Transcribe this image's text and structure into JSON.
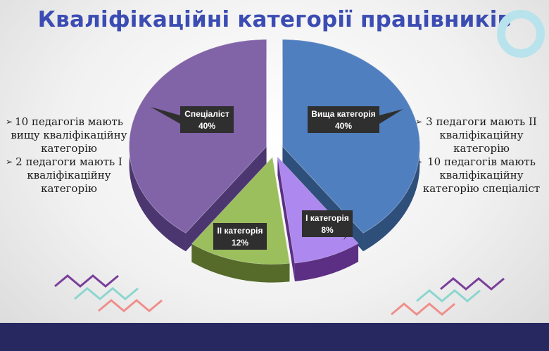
{
  "slide": {
    "title": "Кваліфікаційні категорії працівників"
  },
  "left_notes": [
    "10  педагогів мають вищу кваліфікаційну категорію",
    "2  педагоги мають І кваліфікаційну категорію"
  ],
  "right_notes": [
    "3 педагоги мають ІІ кваліфікаційну категорію",
    "10 педагогів мають кваліфікаційну категорію спеціаліст"
  ],
  "bullet_glyph": "➢",
  "colors": {
    "title": "#3b4cb3",
    "footer": "#272860",
    "ring": "#b9e3ec",
    "zig_purple": "#7a3f9a",
    "zig_teal": "#8dd6cf",
    "zig_salmon": "#ef8f8b"
  },
  "chart_data": {
    "type": "pie",
    "title": "",
    "style": "3d-exploded",
    "slices": [
      {
        "label": "Вища категорія",
        "value": 40,
        "value_label": "40%",
        "color": "#4f7fbf",
        "side_color": "#2e4f7a"
      },
      {
        "label": "І категорія",
        "value": 8,
        "value_label": "8%",
        "color": "#ad88ee",
        "side_color": "#5c2f84"
      },
      {
        "label": "ІІ категорія",
        "value": 12,
        "value_label": "12%",
        "color": "#9bbf5c",
        "side_color": "#566b2a"
      },
      {
        "label": "Спеціаліст",
        "value": 40,
        "value_label": "40%",
        "color": "#8163a8",
        "side_color": "#4b3670"
      }
    ]
  }
}
